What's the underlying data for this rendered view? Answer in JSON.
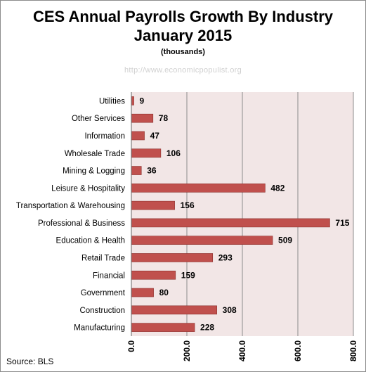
{
  "chart_data": {
    "type": "bar",
    "orientation": "horizontal",
    "title": "CES Annual Payrolls Growth By Industry",
    "title_line2": "January 2015",
    "subtitle": "(thousands)",
    "watermark": "http://www.economicpopulist.org",
    "source": "Source:  BLS",
    "categories": [
      "Utilities",
      "Other Services",
      "Information",
      "Wholesale Trade",
      "Mining & Logging",
      "Leisure & Hospitality",
      "Transportation & Warehousing",
      "Professional & Business",
      "Education & Health",
      "Retail Trade",
      "Financial",
      "Government",
      "Construction",
      "Manufacturing"
    ],
    "values": [
      9,
      78,
      47,
      106,
      36,
      482,
      156,
      715,
      509,
      293,
      159,
      80,
      308,
      228
    ],
    "xlim": [
      0,
      800
    ],
    "xticks": [
      "0.0",
      "200.0",
      "400.0",
      "600.0",
      "800.0"
    ],
    "xtick_values": [
      0,
      200,
      400,
      600,
      800
    ],
    "grid": "vertical",
    "legend": "none",
    "colors": {
      "bar": "#c0504d",
      "bar_border": "#8c2f2c",
      "plot_bg": "#f2e6e6",
      "grid": "#8c8c8c"
    }
  }
}
